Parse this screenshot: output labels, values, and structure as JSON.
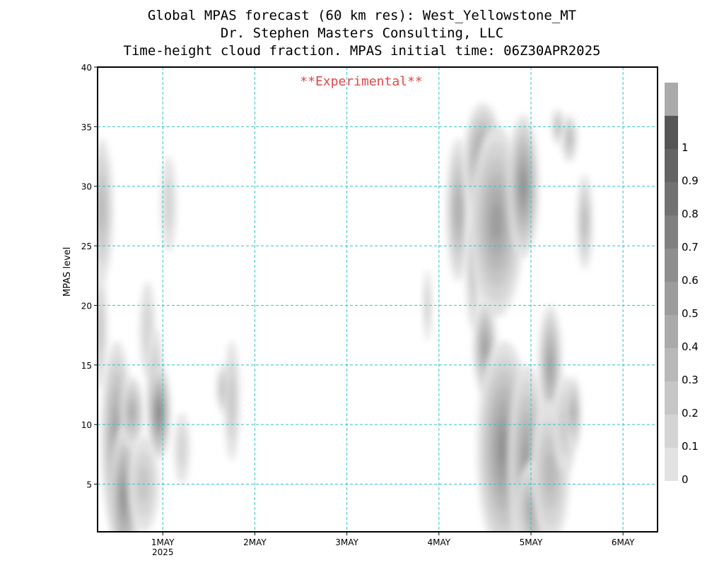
{
  "titles": {
    "line1": "Global MPAS forecast (60 km res): West_Yellowstone_MT",
    "line2": "Dr. Stephen Masters Consulting, LLC",
    "line3": "Time-height cloud fraction.   MPAS initial time: 06Z30APR2025"
  },
  "watermark": "**Experimental**",
  "colors": {
    "grid": "#2ec4c4",
    "watermark": "#e04646",
    "frame": "#000000"
  },
  "chart_data": {
    "type": "heatmap",
    "ylabel": "MPAS level",
    "xlim_hours": [
      7,
      153
    ],
    "ylim": [
      1,
      40
    ],
    "y_ticks": [
      5,
      10,
      15,
      20,
      25,
      30,
      35,
      40
    ],
    "x_ticks": [
      {
        "hour": 24,
        "label": "1MAY",
        "sub": "2025"
      },
      {
        "hour": 48,
        "label": "2MAY",
        "sub": ""
      },
      {
        "hour": 72,
        "label": "3MAY",
        "sub": ""
      },
      {
        "hour": 96,
        "label": "4MAY",
        "sub": ""
      },
      {
        "hour": 120,
        "label": "5MAY",
        "sub": ""
      },
      {
        "hour": 144,
        "label": "6MAY",
        "sub": ""
      }
    ],
    "colorbar": {
      "labels": [
        "0",
        "0.1",
        "0.2",
        "0.3",
        "0.4",
        "0.5",
        "0.6",
        "0.7",
        "0.8",
        "0.9",
        "1"
      ],
      "colors": [
        "#e2e2e2",
        "#d4d4d4",
        "#c6c6c6",
        "#b8b8b8",
        "#aaaaaa",
        "#9c9c9c",
        "#8e8e8e",
        "#808080",
        "#727272",
        "#646464",
        "#565656",
        "#aaaaaa"
      ]
    },
    "cloud_cells": [
      {
        "t": 8,
        "z": 28,
        "dt": 3,
        "dz": 6,
        "v": 0.3
      },
      {
        "t": 7.5,
        "z": 18,
        "dt": 2,
        "dz": 5,
        "v": 0.15
      },
      {
        "t": 12,
        "z": 9,
        "dt": 4,
        "dz": 8,
        "v": 0.5
      },
      {
        "t": 14,
        "z": 4,
        "dt": 4,
        "dz": 6,
        "v": 0.6
      },
      {
        "t": 16,
        "z": 11,
        "dt": 3,
        "dz": 3,
        "v": 0.4
      },
      {
        "t": 19,
        "z": 5,
        "dt": 4,
        "dz": 4,
        "v": 0.2
      },
      {
        "t": 20,
        "z": 18,
        "dt": 2,
        "dz": 4,
        "v": 0.1
      },
      {
        "t": 22,
        "z": 14,
        "dt": 2,
        "dz": 4,
        "v": 0.2
      },
      {
        "t": 23,
        "z": 11,
        "dt": 3,
        "dz": 4,
        "v": 0.7
      },
      {
        "t": 25.5,
        "z": 28.5,
        "dt": 2,
        "dz": 4,
        "v": 0.1
      },
      {
        "t": 29,
        "z": 8,
        "dt": 2,
        "dz": 3,
        "v": 0.1
      },
      {
        "t": 40,
        "z": 13,
        "dt": 2,
        "dz": 2,
        "v": 0.25
      },
      {
        "t": 42,
        "z": 12,
        "dt": 2,
        "dz": 5,
        "v": 0.15
      },
      {
        "t": 93,
        "z": 20,
        "dt": 1,
        "dz": 3,
        "v": 0.15
      },
      {
        "t": 101,
        "z": 28,
        "dt": 3,
        "dz": 6,
        "v": 0.4
      },
      {
        "t": 105,
        "z": 23,
        "dt": 2,
        "dz": 5,
        "v": 0.2
      },
      {
        "t": 107.5,
        "z": 32,
        "dt": 5,
        "dz": 5,
        "v": 0.55
      },
      {
        "t": 111,
        "z": 27,
        "dt": 7,
        "dz": 8,
        "v": 0.45
      },
      {
        "t": 118,
        "z": 30,
        "dt": 4,
        "dz": 6,
        "v": 0.6
      },
      {
        "t": 108,
        "z": 16.5,
        "dt": 3,
        "dz": 4,
        "v": 0.5
      },
      {
        "t": 113,
        "z": 8,
        "dt": 7,
        "dz": 9,
        "v": 0.6
      },
      {
        "t": 119,
        "z": 7,
        "dt": 5,
        "dz": 8,
        "v": 0.5
      },
      {
        "t": 121,
        "z": 3,
        "dt": 5,
        "dz": 4,
        "v": 0.45
      },
      {
        "t": 125,
        "z": 15,
        "dt": 3,
        "dz": 5,
        "v": 0.45
      },
      {
        "t": 125,
        "z": 6,
        "dt": 5,
        "dz": 6,
        "v": 0.3
      },
      {
        "t": 129,
        "z": 10,
        "dt": 3,
        "dz": 4,
        "v": 0.2
      },
      {
        "t": 131,
        "z": 11,
        "dt": 2,
        "dz": 3,
        "v": 0.4
      },
      {
        "t": 130,
        "z": 34,
        "dt": 2,
        "dz": 2,
        "v": 0.3
      },
      {
        "t": 127,
        "z": 35,
        "dt": 1.5,
        "dz": 1.5,
        "v": 0.25
      },
      {
        "t": 134,
        "z": 27,
        "dt": 2,
        "dz": 4,
        "v": 0.3
      }
    ]
  }
}
